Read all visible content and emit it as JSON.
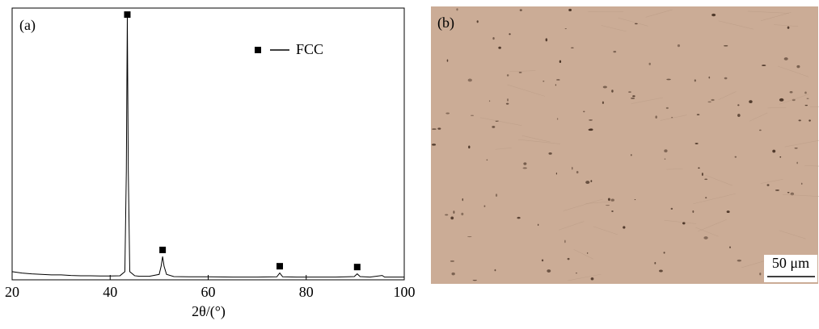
{
  "chart_data": {
    "type": "line",
    "panel_label": "(a)",
    "x_label": "2θ/(°)",
    "x": [
      20,
      22,
      24,
      26,
      28,
      30,
      32,
      34,
      36,
      38,
      40,
      42,
      43,
      43.3,
      43.5,
      43.7,
      44,
      45,
      46,
      48,
      50,
      50.4,
      50.7,
      51,
      51.5,
      53,
      56,
      60,
      65,
      70,
      74,
      74.6,
      75.2,
      78,
      82,
      86,
      89.8,
      90.4,
      91,
      93,
      95.5,
      96,
      98,
      100
    ],
    "values": [
      3,
      2.5,
      2.2,
      2,
      1.8,
      1.8,
      1.6,
      1.5,
      1.5,
      1.4,
      1.4,
      1.5,
      3,
      40,
      97,
      40,
      3,
      1.5,
      1.3,
      1.3,
      2,
      5,
      8.6,
      5,
      2,
      1.2,
      1.1,
      1.1,
      1,
      1,
      1.1,
      2.5,
      1.1,
      1,
      1,
      1,
      1.2,
      2.2,
      1.2,
      1,
      1.6,
      1,
      1,
      1
    ],
    "color": "#000000",
    "xlim": [
      20,
      100
    ],
    "xticks": [
      20,
      40,
      60,
      80,
      100
    ],
    "ylim": [
      0,
      100
    ],
    "markers": {
      "name": "FCC",
      "x": [
        43.5,
        50.7,
        74.6,
        90.4
      ],
      "y": [
        97.6,
        11,
        5,
        4.7
      ]
    }
  },
  "panel_b": {
    "label": "(b)",
    "scale_bar": "50 μm"
  }
}
